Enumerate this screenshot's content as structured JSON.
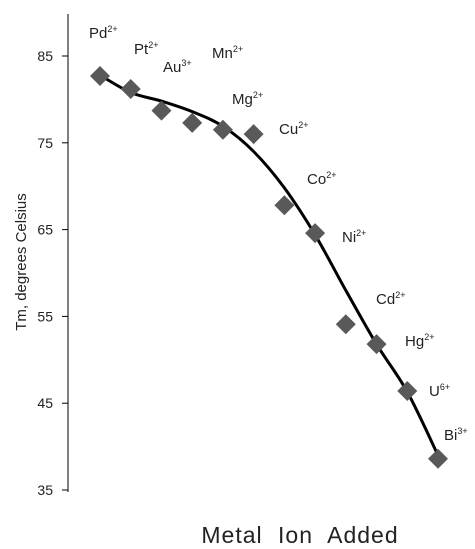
{
  "chart_data": {
    "type": "scatter",
    "title": "",
    "xlabel": "Metal  Ion  Added",
    "ylabel": "Tm, degrees Celsius",
    "ylim": [
      35,
      85
    ],
    "yticks": [
      "35",
      "45",
      "55",
      "65",
      "75",
      "85"
    ],
    "grid": false,
    "legend": "none",
    "marker": "diamond",
    "marker_color": "#595959",
    "line_color": "#000000",
    "series": [
      {
        "points": [
          {
            "ion": "Pd",
            "charge": "2+",
            "y": 82.7
          },
          {
            "ion": "Pt",
            "charge": "2+",
            "y": 81.2
          },
          {
            "ion": "Au",
            "charge": "3+",
            "y": 78.7
          },
          {
            "ion": "Mn",
            "charge": "2+",
            "y": 77.3
          },
          {
            "ion": "Mg",
            "charge": "2+",
            "y": 76.5
          },
          {
            "ion": "Cu",
            "charge": "2+",
            "y": 76.0
          },
          {
            "ion": "Co",
            "charge": "2+",
            "y": 67.8
          },
          {
            "ion": "Ni",
            "charge": "2+",
            "y": 64.6
          },
          {
            "ion": "Cd",
            "charge": "2+",
            "y": 54.1
          },
          {
            "ion": "Hg",
            "charge": "2+",
            "y": 51.8
          },
          {
            "ion": "U",
            "charge": "6+",
            "y": 46.4
          },
          {
            "ion": "Bi",
            "charge": "3+",
            "y": 38.6
          }
        ],
        "trendline": [
          [
            1,
            82.8
          ],
          [
            2,
            80.8
          ],
          [
            3,
            79.8
          ],
          [
            4,
            78.6
          ],
          [
            5,
            76.9
          ],
          [
            6,
            74.0
          ],
          [
            7,
            69.8
          ],
          [
            8,
            64.4
          ],
          [
            9,
            58.0
          ],
          [
            10,
            51.8
          ],
          [
            11,
            46.3
          ],
          [
            12,
            39.0
          ]
        ]
      }
    ]
  }
}
